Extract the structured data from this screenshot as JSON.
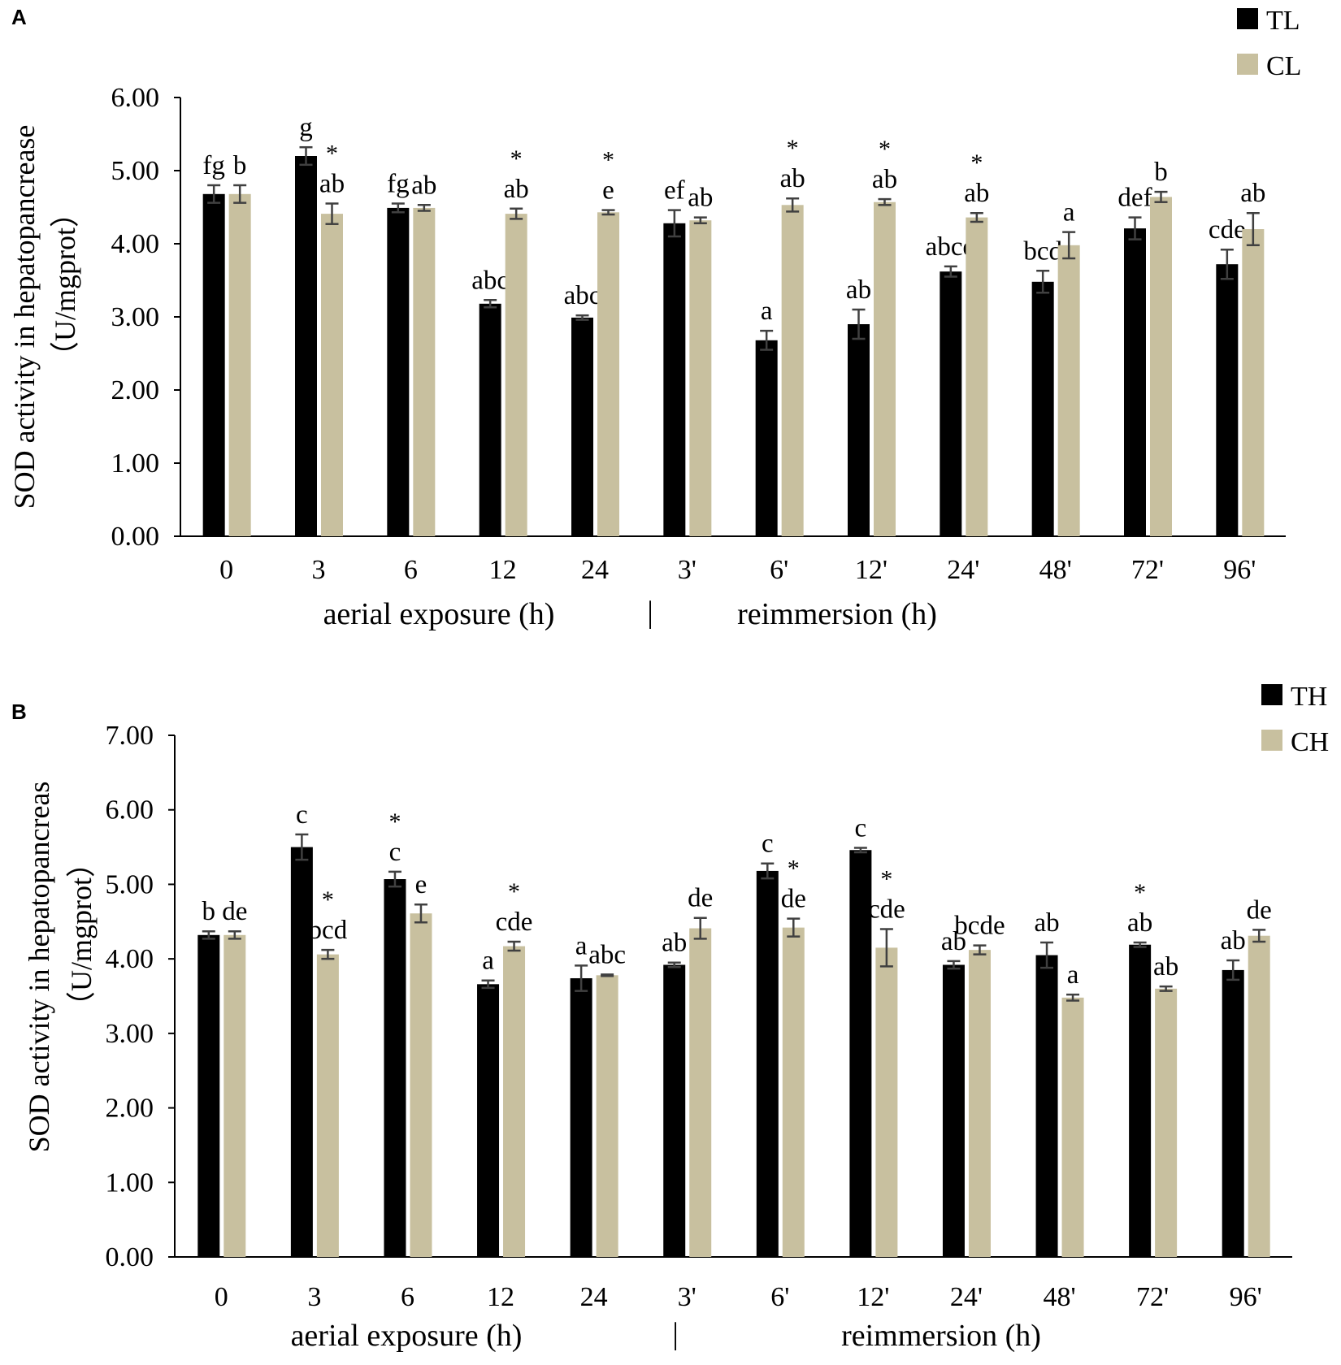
{
  "chart_data": [
    {
      "panel": "A",
      "type": "bar",
      "ylabel_line1": "SOD activity in hepatopancrease",
      "ylabel_line2": "（U/mgprot）",
      "ylim": [
        0,
        6
      ],
      "yticks": [
        "0.00",
        "1.00",
        "2.00",
        "3.00",
        "4.00",
        "5.00",
        "6.00"
      ],
      "categories": [
        "0",
        "3",
        "6",
        "12",
        "24",
        "3'",
        "6'",
        "12'",
        "24'",
        "48'",
        "72'",
        "96'"
      ],
      "xlabel_left": "aerial exposure (h)",
      "xlabel_right": "reimmersion (h)",
      "separator": "|",
      "series": [
        {
          "name": "TL",
          "color": "#000000",
          "values": [
            4.68,
            5.2,
            4.49,
            3.18,
            2.99,
            4.28,
            2.68,
            2.9,
            3.62,
            3.48,
            4.21,
            3.72
          ],
          "errors": [
            0.12,
            0.12,
            0.06,
            0.05,
            0.03,
            0.18,
            0.13,
            0.2,
            0.07,
            0.15,
            0.15,
            0.2
          ],
          "labels": [
            "fg",
            "g",
            "fg",
            "abc",
            "abc",
            "ef",
            "a",
            "ab",
            "abcd",
            "bcd",
            "def",
            "cde"
          ]
        },
        {
          "name": "CL",
          "color": "#c8c09f",
          "values": [
            4.68,
            4.41,
            4.49,
            4.41,
            4.43,
            4.32,
            4.53,
            4.57,
            4.36,
            3.98,
            4.64,
            4.2
          ],
          "errors": [
            0.12,
            0.14,
            0.04,
            0.07,
            0.03,
            0.04,
            0.09,
            0.04,
            0.06,
            0.18,
            0.07,
            0.22
          ],
          "labels": [
            "b",
            "ab",
            "ab",
            "ab",
            "e",
            "ab",
            "ab",
            "ab",
            "ab",
            "a",
            "b",
            "ab"
          ],
          "significant": [
            false,
            true,
            false,
            true,
            true,
            false,
            true,
            true,
            true,
            false,
            false,
            false
          ]
        }
      ],
      "significance_marker": "*"
    },
    {
      "panel": "B",
      "type": "bar",
      "ylabel_line1": "SOD activity in hepatopancreas",
      "ylabel_line2": "（U/mgprot）",
      "ylim": [
        0,
        7
      ],
      "yticks": [
        "0.00",
        "1.00",
        "2.00",
        "3.00",
        "4.00",
        "5.00",
        "6.00",
        "7.00"
      ],
      "categories": [
        "0",
        "3",
        "6",
        "12",
        "24",
        "3'",
        "6'",
        "12'",
        "24'",
        "48'",
        "72'",
        "96'"
      ],
      "xlabel_left": "aerial exposure (h)",
      "xlabel_right": "reimmersion (h)",
      "separator": "|",
      "series": [
        {
          "name": "TH",
          "color": "#000000",
          "values": [
            4.32,
            5.5,
            5.07,
            3.66,
            3.74,
            3.92,
            5.18,
            5.46,
            3.92,
            4.05,
            4.19,
            3.85
          ],
          "errors": [
            0.05,
            0.17,
            0.1,
            0.05,
            0.17,
            0.03,
            0.1,
            0.03,
            0.05,
            0.17,
            0.03,
            0.13
          ],
          "labels": [
            "b",
            "c",
            "c",
            "a",
            "a",
            "ab",
            "c",
            "c",
            "ab",
            "ab",
            "ab",
            "ab"
          ],
          "significant": [
            false,
            false,
            true,
            false,
            false,
            false,
            false,
            false,
            false,
            false,
            true,
            false
          ]
        },
        {
          "name": "CH",
          "color": "#c8c09f",
          "values": [
            4.32,
            4.06,
            4.61,
            4.17,
            3.78,
            4.41,
            4.42,
            4.15,
            4.12,
            3.48,
            3.6,
            4.31
          ],
          "errors": [
            0.05,
            0.06,
            0.12,
            0.06,
            0.01,
            0.14,
            0.12,
            0.25,
            0.06,
            0.04,
            0.03,
            0.08
          ],
          "labels": [
            "de",
            "bcd",
            "e",
            "cde",
            "abc",
            "de",
            "de",
            "cde",
            "bcde",
            "a",
            "ab",
            "de"
          ],
          "significant": [
            false,
            true,
            false,
            true,
            false,
            false,
            true,
            true,
            false,
            false,
            false,
            false
          ]
        }
      ],
      "significance_marker": "*"
    }
  ]
}
